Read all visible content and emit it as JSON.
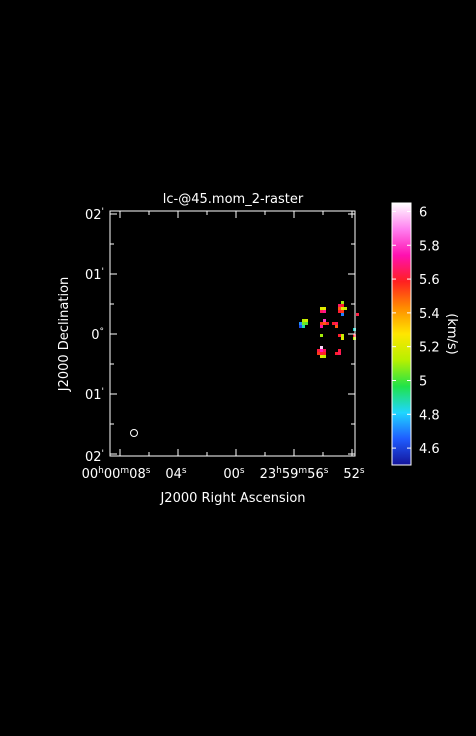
{
  "chart_data": {
    "type": "heatmap",
    "title": "lc-@45.mom_2-raster",
    "xlabel": "J2000 Right Ascension",
    "ylabel": "J2000 Declination",
    "x_tick_labels": [
      {
        "text": "00h00m08s",
        "raw": [
          "00",
          "h",
          "00",
          "m",
          "08",
          "s"
        ]
      },
      {
        "text": "04s",
        "raw": [
          "04",
          "s"
        ]
      },
      {
        "text": "00s",
        "raw": [
          "00",
          "s"
        ]
      },
      {
        "text": "23h59m56s",
        "raw": [
          "23",
          "h",
          "59",
          "m",
          "56",
          "s"
        ]
      },
      {
        "text": "52s",
        "raw": [
          "52",
          "s"
        ]
      }
    ],
    "y_tick_labels": [
      {
        "text": "02'",
        "raw": [
          "02",
          "'"
        ]
      },
      {
        "text": "01'",
        "raw": [
          "01",
          "'"
        ]
      },
      {
        "text": "0°",
        "raw": [
          "0",
          "°"
        ]
      },
      {
        "text": "01'",
        "raw": [
          "01",
          "'"
        ]
      },
      {
        "text": "02'",
        "raw": [
          "02",
          "'"
        ]
      }
    ],
    "colorbar": {
      "label": "(km/s)",
      "range": [
        4.5,
        6.05
      ],
      "tick_labels": [
        "6",
        "5.8",
        "5.6",
        "5.4",
        "5.2",
        "5",
        "4.8",
        "4.6"
      ],
      "tick_values": [
        6.0,
        5.8,
        5.6,
        5.4,
        5.2,
        5.0,
        4.8,
        4.6
      ],
      "colors": [
        "#14149a",
        "#1f5cff",
        "#1fd6ff",
        "#20e34a",
        "#b7f000",
        "#ffe600",
        "#ff8c00",
        "#ff2020",
        "#ff10b0",
        "#ff80f0",
        "#ffffff"
      ]
    },
    "grid": false,
    "beam_marker": "ellipse",
    "pixels": [
      {
        "x": 22,
        "y": 2,
        "v": 4.62
      },
      {
        "x": 22,
        "y": 3,
        "v": 4.72
      },
      {
        "x": 23,
        "y": 2,
        "v": 4.88
      },
      {
        "x": 23,
        "y": 3,
        "v": 5.05
      },
      {
        "x": 23,
        "y": 4,
        "v": 5.12
      },
      {
        "x": 24,
        "y": 3,
        "v": 5.02
      },
      {
        "x": 24,
        "y": 4,
        "v": 5.18
      },
      {
        "x": 29,
        "y": 7,
        "v": 5.65
      },
      {
        "x": 29,
        "y": 8,
        "v": 5.2
      },
      {
        "x": 30,
        "y": 7,
        "v": 5.7
      },
      {
        "x": 30,
        "y": 8,
        "v": 5.22
      },
      {
        "x": 29,
        "y": 3,
        "v": 5.55
      },
      {
        "x": 29,
        "y": 2,
        "v": 5.72
      },
      {
        "x": 30,
        "y": 3,
        "v": 5.5
      },
      {
        "x": 30,
        "y": 4,
        "v": 5.8
      },
      {
        "x": 31,
        "y": 3,
        "v": 5.6
      },
      {
        "x": 29,
        "y": -1,
        "v": 5.1
      },
      {
        "x": 28,
        "y": -6,
        "v": 5.62
      },
      {
        "x": 28,
        "y": -7,
        "v": 5.55
      },
      {
        "x": 29,
        "y": -6,
        "v": 5.75
      },
      {
        "x": 29,
        "y": -7,
        "v": 5.6
      },
      {
        "x": 29,
        "y": -8,
        "v": 5.2
      },
      {
        "x": 30,
        "y": -6,
        "v": 5.65
      },
      {
        "x": 30,
        "y": -7,
        "v": 5.58
      },
      {
        "x": 30,
        "y": -8,
        "v": 5.15
      },
      {
        "x": 29,
        "y": -5,
        "v": 6.0
      },
      {
        "x": 35,
        "y": 7,
        "v": 5.6
      },
      {
        "x": 35,
        "y": 8,
        "v": 5.5
      },
      {
        "x": 35,
        "y": 9,
        "v": 5.65
      },
      {
        "x": 36,
        "y": 7,
        "v": 5.55
      },
      {
        "x": 36,
        "y": 8,
        "v": 5.2
      },
      {
        "x": 36,
        "y": 9,
        "v": 5.6
      },
      {
        "x": 37,
        "y": 8,
        "v": 5.15
      },
      {
        "x": 36,
        "y": 10,
        "v": 5.1
      },
      {
        "x": 36,
        "y": 6,
        "v": 4.7
      },
      {
        "x": 33,
        "y": 3,
        "v": 5.6
      },
      {
        "x": 34,
        "y": 3,
        "v": 5.65
      },
      {
        "x": 34,
        "y": 2,
        "v": 5.5
      },
      {
        "x": 36,
        "y": -1,
        "v": 5.15
      },
      {
        "x": 36,
        "y": -2,
        "v": 5.2
      },
      {
        "x": 35,
        "y": -1,
        "v": 5.6
      },
      {
        "x": 34,
        "y": -7,
        "v": 5.6
      },
      {
        "x": 35,
        "y": -6,
        "v": 5.62
      },
      {
        "x": 35,
        "y": -7,
        "v": 5.65
      },
      {
        "x": 40,
        "y": -1,
        "v": 5.6
      },
      {
        "x": 40,
        "y": -2,
        "v": 5.12
      },
      {
        "x": 40,
        "y": 1,
        "v": 4.85
      },
      {
        "x": 41,
        "y": 6,
        "v": 5.62
      }
    ]
  }
}
